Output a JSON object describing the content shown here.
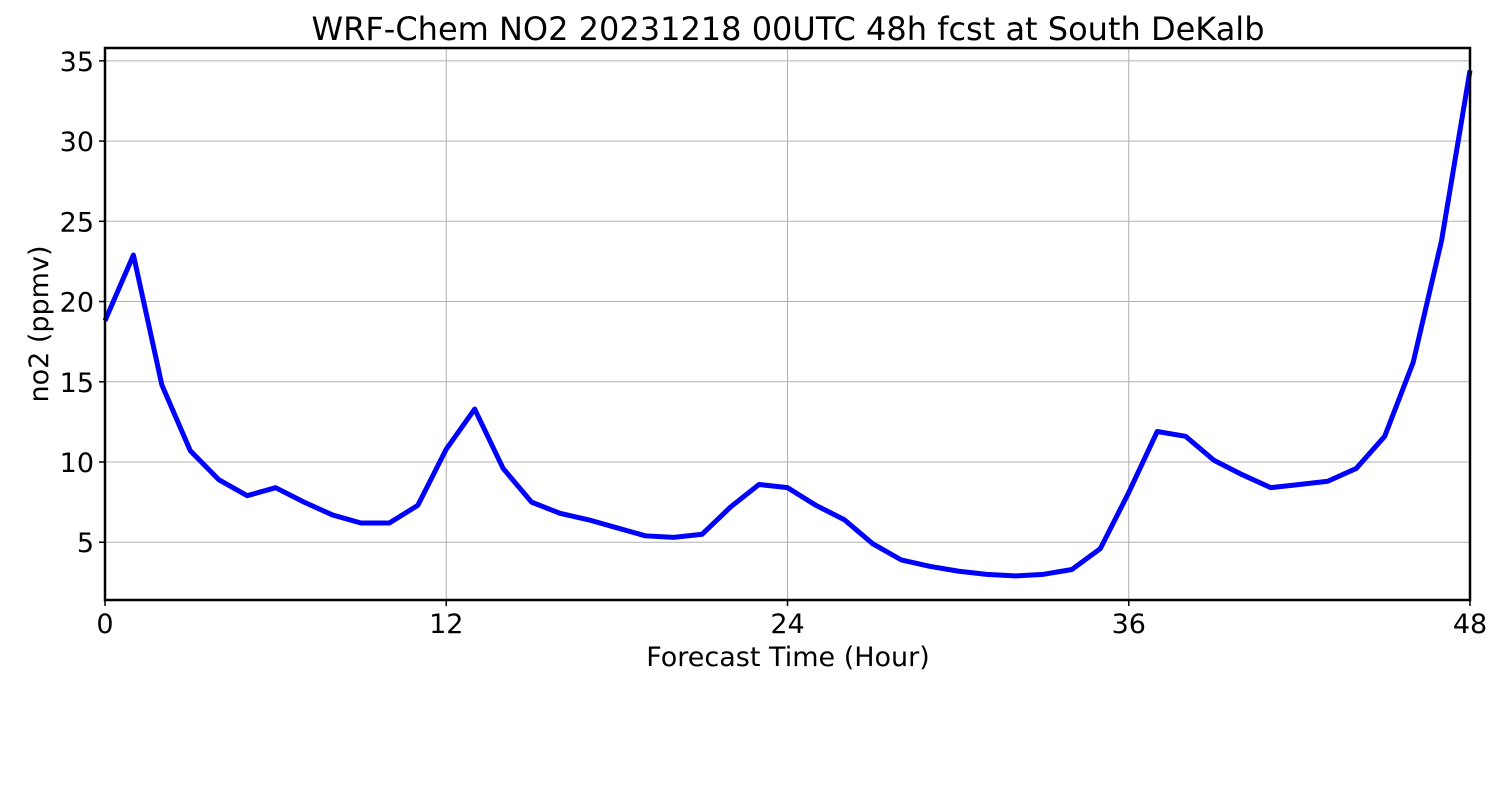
{
  "chart_data": {
    "type": "line",
    "title": "WRF-Chem NO2  20231218 00UTC 48h fcst at South DeKalb",
    "xlabel": "Forecast Time (Hour)",
    "ylabel": "no2  (ppmv)",
    "xlim": [
      0,
      48
    ],
    "ylim": [
      1.4,
      35.8
    ],
    "xticks": [
      0,
      12,
      24,
      36,
      48
    ],
    "yticks": [
      5,
      10,
      15,
      20,
      25,
      30,
      35
    ],
    "grid": true,
    "line_color": "#0000ff",
    "x": [
      0,
      1,
      2,
      3,
      4,
      5,
      6,
      7,
      8,
      9,
      10,
      11,
      12,
      13,
      14,
      15,
      16,
      17,
      18,
      19,
      20,
      21,
      22,
      23,
      24,
      25,
      26,
      27,
      28,
      29,
      30,
      31,
      32,
      33,
      34,
      35,
      36,
      37,
      38,
      39,
      40,
      41,
      42,
      43,
      44,
      45,
      46,
      47,
      48
    ],
    "series": [
      {
        "values": [
          18.8,
          22.9,
          14.8,
          10.7,
          8.9,
          7.9,
          8.4,
          7.5,
          6.7,
          6.2,
          6.2,
          7.3,
          10.8,
          13.3,
          9.6,
          7.5,
          6.8,
          6.4,
          5.9,
          5.4,
          5.3,
          5.5,
          7.2,
          8.6,
          8.4,
          7.3,
          6.4,
          4.9,
          3.9,
          3.5,
          3.2,
          3.0,
          2.9,
          3.0,
          3.3,
          4.6,
          8.1,
          11.9,
          11.6,
          10.1,
          9.2,
          8.4,
          8.6,
          8.8,
          9.6,
          11.6,
          16.2,
          23.8,
          34.4
        ]
      }
    ]
  }
}
